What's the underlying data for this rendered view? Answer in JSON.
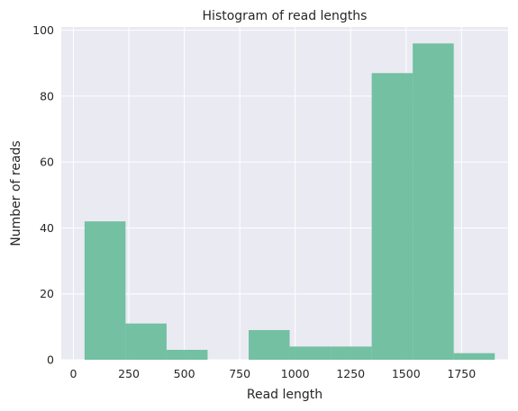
{
  "chart_data": {
    "type": "bar",
    "title": "Histogram of read lengths",
    "xlabel": "Read length",
    "ylabel": "Number of reads",
    "xlim": [
      -55,
      1960
    ],
    "ylim": [
      0,
      101
    ],
    "x_ticks": [
      "0",
      "250",
      "500",
      "750",
      "1000",
      "1250",
      "1500",
      "1750"
    ],
    "y_ticks": [
      "0",
      "20",
      "40",
      "60",
      "80",
      "100"
    ],
    "bins": [
      {
        "x0": 50,
        "x1": 235,
        "value": 42
      },
      {
        "x0": 235,
        "x1": 420,
        "value": 11
      },
      {
        "x0": 420,
        "x1": 605,
        "value": 3
      },
      {
        "x0": 605,
        "x1": 790,
        "value": 0
      },
      {
        "x0": 790,
        "x1": 975,
        "value": 9
      },
      {
        "x0": 975,
        "x1": 1160,
        "value": 4
      },
      {
        "x0": 1160,
        "x1": 1345,
        "value": 4
      },
      {
        "x0": 1345,
        "x1": 1530,
        "value": 87
      },
      {
        "x0": 1530,
        "x1": 1715,
        "value": 96
      },
      {
        "x0": 1715,
        "x1": 1900,
        "value": 2
      }
    ],
    "grid": true,
    "legend": "none",
    "bar_color": "#66bb99",
    "background_color": "#eaeaf2"
  }
}
